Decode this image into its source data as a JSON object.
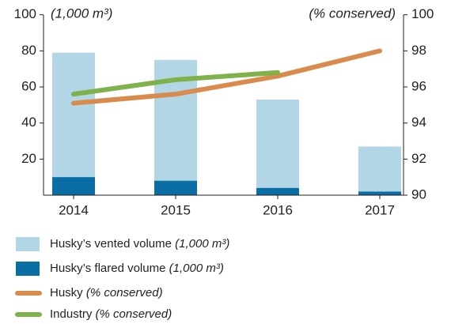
{
  "chart_data": {
    "type": "bar",
    "categories": [
      "2014",
      "2015",
      "2016",
      "2017"
    ],
    "y_label": "(1,000 m³)",
    "y2_label": "(% conserved)",
    "ylim": [
      0,
      100
    ],
    "yticks": [
      20,
      40,
      60,
      80,
      100
    ],
    "y2lim": [
      90,
      100
    ],
    "y2ticks": [
      90,
      92,
      94,
      96,
      98,
      100
    ],
    "series": [
      {
        "name": "Husky’s vented volume",
        "unit": "(1,000 m³)",
        "type": "bar",
        "color": "#b3d6e6",
        "values": [
          79,
          75,
          53,
          27
        ]
      },
      {
        "name": "Husky’s flared volume",
        "unit": "(1,000 m³)",
        "type": "bar",
        "color": "#0a6ea5",
        "values": [
          10,
          8,
          4,
          2
        ]
      },
      {
        "name": "Husky",
        "unit": "(% conserved)",
        "type": "line",
        "axis": "y2",
        "color": "#d98b4e",
        "values": [
          95.1,
          95.6,
          96.6,
          98.0
        ]
      },
      {
        "name": "Industry",
        "unit": "(% conserved)",
        "type": "line",
        "axis": "y2",
        "color": "#7fb24a",
        "values": [
          95.6,
          96.4,
          96.8,
          null
        ]
      }
    ]
  }
}
